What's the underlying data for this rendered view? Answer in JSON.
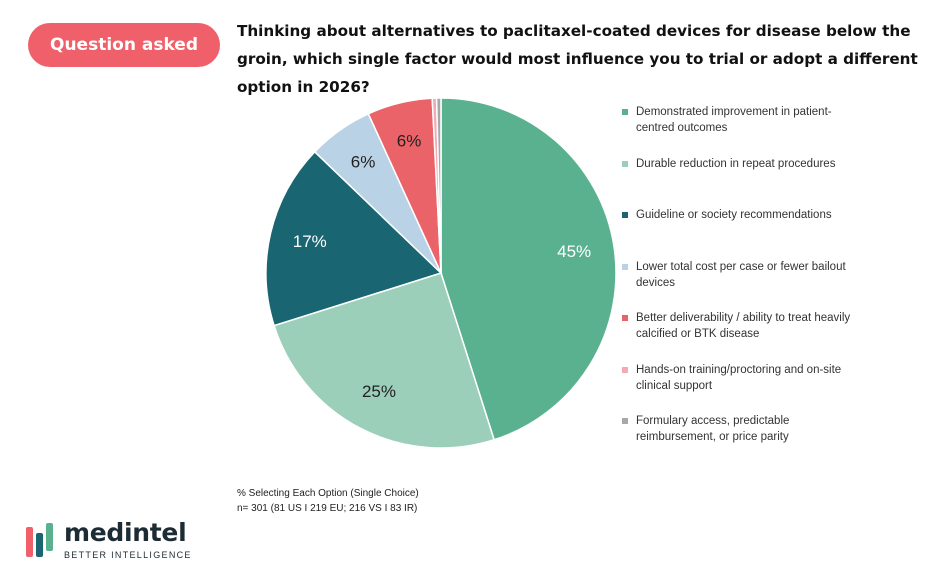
{
  "header": {
    "badge": "Question asked",
    "question": "Thinking about alternatives to paclitaxel-coated devices for disease below the groin, which single factor would most influence you to trial or adopt a different option in 2026?"
  },
  "chart_data": {
    "type": "pie",
    "title": "Thinking about alternatives to paclitaxel-coated devices for disease below the groin, which single factor would most influence you to trial or adopt a different option in 2026?",
    "legend_position": "right",
    "slices": [
      {
        "label": "Demonstrated improvement in patient-centred outcomes",
        "value": 45,
        "display": "45%",
        "color": "#5ab18f"
      },
      {
        "label": "Durable reduction in repeat procedures",
        "value": 25,
        "display": "25%",
        "color": "#9ccfba"
      },
      {
        "label": "Guideline or society recommendations",
        "value": 17,
        "display": "17%",
        "color": "#196672"
      },
      {
        "label": "Lower total cost per case or fewer bailout devices",
        "value": 6,
        "display": "6%",
        "color": "#bad2e6"
      },
      {
        "label": "Better  deliverability / ability to treat heavily calcified or BTK disease",
        "value": 6,
        "display": "6%",
        "color": "#ea6369"
      },
      {
        "label": "Hands-on training/proctoring and on-site clinical support",
        "value": 0.4,
        "display": "",
        "color": "#f2aab4"
      },
      {
        "label": "Formulary access, predictable reimbursement, or price parity",
        "value": 0.4,
        "display": "",
        "color": "#a8a8a8"
      }
    ]
  },
  "footnote": {
    "line1": "% Selecting Each Option (Single Choice)",
    "line2": "n= 301 (81 US I 219 EU; 216 VS I 83 IR)"
  },
  "brand": {
    "name": "medintel",
    "tagline": "BETTER INTELLIGENCE",
    "colors": {
      "red": "#f0606a",
      "teal": "#196672",
      "green": "#5ab18f"
    }
  }
}
